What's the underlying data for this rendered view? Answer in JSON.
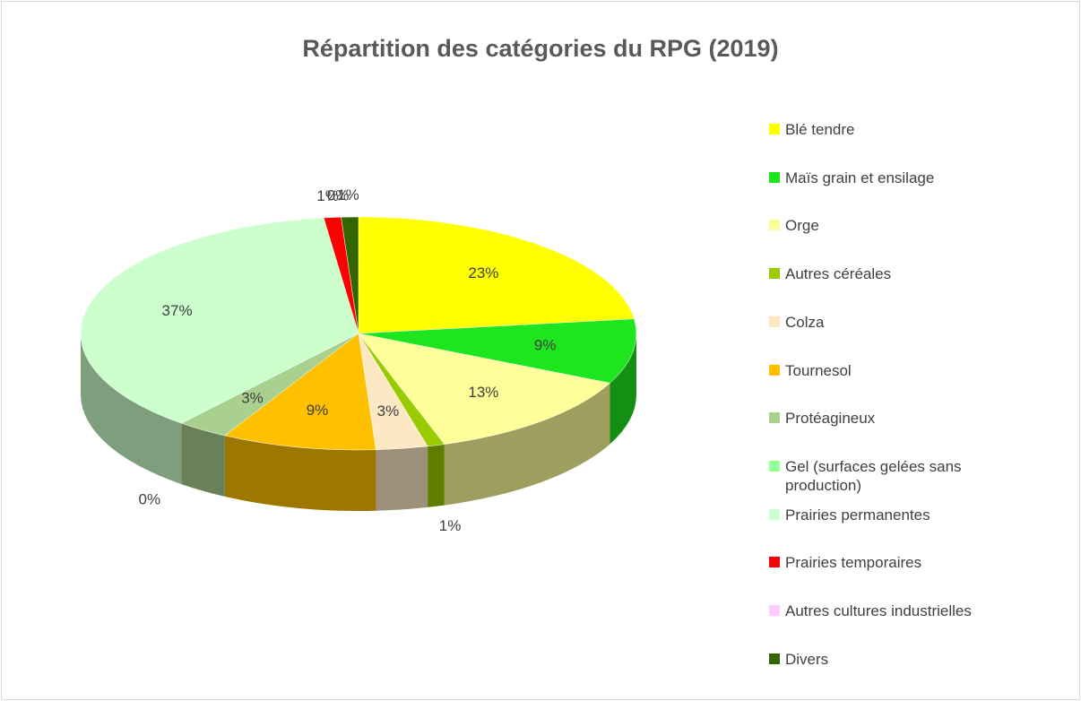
{
  "chart_data": {
    "type": "pie3d",
    "title": "Répartition des catégories du RPG (2019)",
    "categories": [
      "Blé tendre",
      "Maïs grain et ensilage",
      "Orge",
      "Autres céréales",
      "Colza",
      "Tournesol",
      "Protéagineux",
      "Gel (surfaces gelées sans production)",
      "Prairies permanentes",
      "Prairies temporaires",
      "Autres cultures industrielles",
      "Divers"
    ],
    "values": [
      23,
      9,
      13,
      1,
      3,
      9,
      3,
      0,
      37,
      1,
      0,
      1
    ],
    "value_labels": [
      "23%",
      "9%",
      "13%",
      "1%",
      "3%",
      "9%",
      "3%",
      "0%",
      "37%",
      "1%",
      "0%",
      "1%"
    ],
    "colors": [
      "#ffff00",
      "#1ee61e",
      "#ffff99",
      "#99cc00",
      "#fce9c4",
      "#ffc000",
      "#a9d08e",
      "#99ff99",
      "#ccffcc",
      "#ff0000",
      "#ffccff",
      "#336600"
    ],
    "legend": "right"
  }
}
